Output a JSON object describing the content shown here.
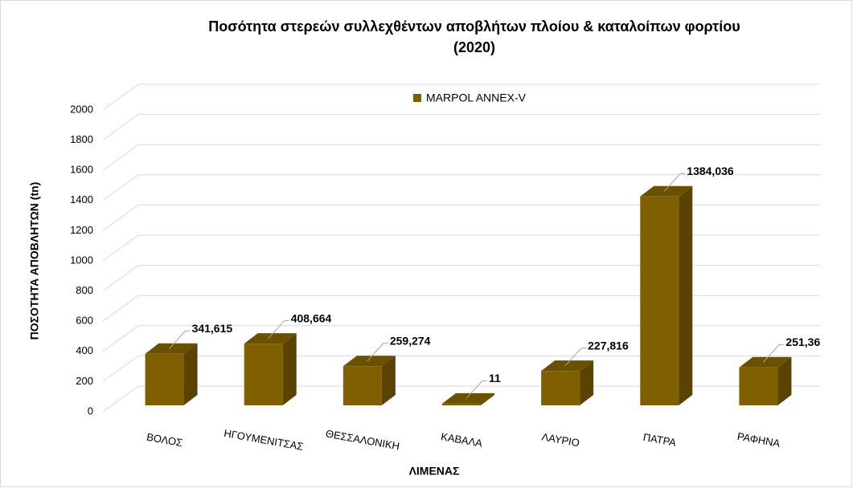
{
  "chart_data": {
    "type": "bar3d",
    "title": [
      "Ποσότητα στερεών συλλεχθέντων αποβλήτων  πλοίου & καταλοίπων φορτίου",
      "(2020)"
    ],
    "y_label": "ΠΟΣΟΤΗΤΑ ΑΠΟΒΛΗΤΩΝ (tn)",
    "x_label": "ΛΙΜΕΝΑΣ",
    "categories": [
      "ΒΟΛΟΣ",
      "ΗΓΟΥΜΕΝΙΤΣΑΣ",
      "ΘΕΣΣΑΛΟΝΙΚΗ",
      "ΚΑΒΑΛΑ",
      "ΛΑΥΡΙΟ",
      "ΠΑΤΡΑ",
      "ΡΑΦΗΝΑ"
    ],
    "series": [
      {
        "name": "MARPOL ANNEX-V",
        "color": "#7f5f00",
        "values": [
          341.615,
          408.664,
          259.274,
          11,
          227.816,
          1384.036,
          251.36
        ],
        "value_labels": [
          "341,615",
          "408,664",
          "259,274",
          "11",
          "227,816",
          "1384,036",
          "251,36"
        ]
      }
    ],
    "ylim": [
      0,
      2000
    ],
    "yticks": [
      0,
      200,
      400,
      600,
      800,
      1000,
      1200,
      1400,
      1600,
      1800,
      2000
    ],
    "grid": true,
    "legend": "top"
  }
}
